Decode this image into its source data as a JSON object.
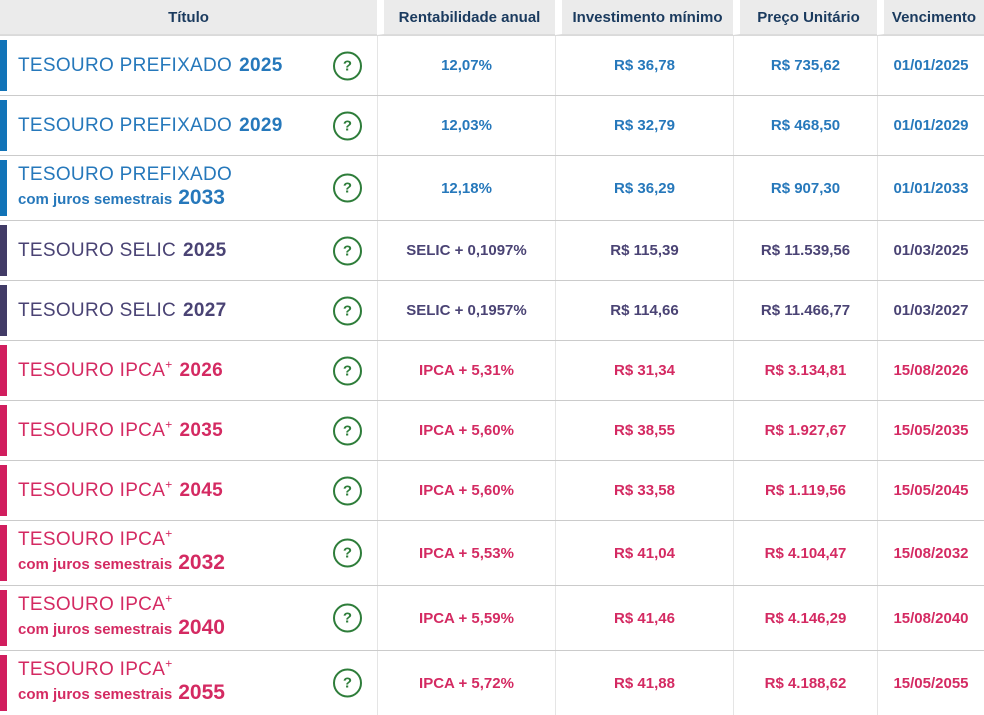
{
  "table": {
    "headers": [
      "Título",
      "Rentabilidade anual",
      "Investimento mínimo",
      "Preço Unitário",
      "Vencimento"
    ],
    "help_label": "?",
    "rows": [
      {
        "type": "prefixado",
        "name": "TESOURO PREFIXADO",
        "sup": "",
        "subtitle": "",
        "year": "2025",
        "rate": "12,07%",
        "min_investment": "R$ 36,78",
        "unit_price": "R$ 735,62",
        "maturity": "01/01/2025"
      },
      {
        "type": "prefixado",
        "name": "TESOURO PREFIXADO",
        "sup": "",
        "subtitle": "",
        "year": "2029",
        "rate": "12,03%",
        "min_investment": "R$ 32,79",
        "unit_price": "R$ 468,50",
        "maturity": "01/01/2029"
      },
      {
        "type": "prefixado",
        "name": "TESOURO PREFIXADO",
        "sup": "",
        "subtitle": "com juros semestrais",
        "year": "2033",
        "rate": "12,18%",
        "min_investment": "R$ 36,29",
        "unit_price": "R$ 907,30",
        "maturity": "01/01/2033"
      },
      {
        "type": "selic",
        "name": "TESOURO SELIC",
        "sup": "",
        "subtitle": "",
        "year": "2025",
        "rate": "SELIC + 0,1097%",
        "min_investment": "R$ 115,39",
        "unit_price": "R$ 11.539,56",
        "maturity": "01/03/2025"
      },
      {
        "type": "selic",
        "name": "TESOURO SELIC",
        "sup": "",
        "subtitle": "",
        "year": "2027",
        "rate": "SELIC + 0,1957%",
        "min_investment": "R$ 114,66",
        "unit_price": "R$ 11.466,77",
        "maturity": "01/03/2027"
      },
      {
        "type": "ipca",
        "name": "TESOURO IPCA",
        "sup": "+",
        "subtitle": "",
        "year": "2026",
        "rate": "IPCA + 5,31%",
        "min_investment": "R$ 31,34",
        "unit_price": "R$ 3.134,81",
        "maturity": "15/08/2026"
      },
      {
        "type": "ipca",
        "name": "TESOURO IPCA",
        "sup": "+",
        "subtitle": "",
        "year": "2035",
        "rate": "IPCA + 5,60%",
        "min_investment": "R$ 38,55",
        "unit_price": "R$ 1.927,67",
        "maturity": "15/05/2035"
      },
      {
        "type": "ipca",
        "name": "TESOURO IPCA",
        "sup": "+",
        "subtitle": "",
        "year": "2045",
        "rate": "IPCA + 5,60%",
        "min_investment": "R$ 33,58",
        "unit_price": "R$ 1.119,56",
        "maturity": "15/05/2045"
      },
      {
        "type": "ipca",
        "name": "TESOURO IPCA",
        "sup": "+",
        "subtitle": "com juros semestrais",
        "year": "2032",
        "rate": "IPCA + 5,53%",
        "min_investment": "R$ 41,04",
        "unit_price": "R$ 4.104,47",
        "maturity": "15/08/2032"
      },
      {
        "type": "ipca",
        "name": "TESOURO IPCA",
        "sup": "+",
        "subtitle": "com juros semestrais",
        "year": "2040",
        "rate": "IPCA + 5,59%",
        "min_investment": "R$ 41,46",
        "unit_price": "R$ 4.146,29",
        "maturity": "15/08/2040"
      },
      {
        "type": "ipca",
        "name": "TESOURO IPCA",
        "sup": "+",
        "subtitle": "com juros semestrais",
        "year": "2055",
        "rate": "IPCA + 5,72%",
        "min_investment": "R$ 41,88",
        "unit_price": "R$ 4.188,62",
        "maturity": "15/05/2055"
      }
    ]
  },
  "colors": {
    "prefixado": {
      "bar": "#1173b7",
      "text": "#2678bb"
    },
    "selic": {
      "bar": "#413b66",
      "text": "#4a4374"
    },
    "ipca": {
      "bar": "#d11e5e",
      "text": "#d42a62"
    },
    "help": "#2e7d3a",
    "header_bg": "#ebebeb",
    "header_text": "#1a3a5e"
  }
}
